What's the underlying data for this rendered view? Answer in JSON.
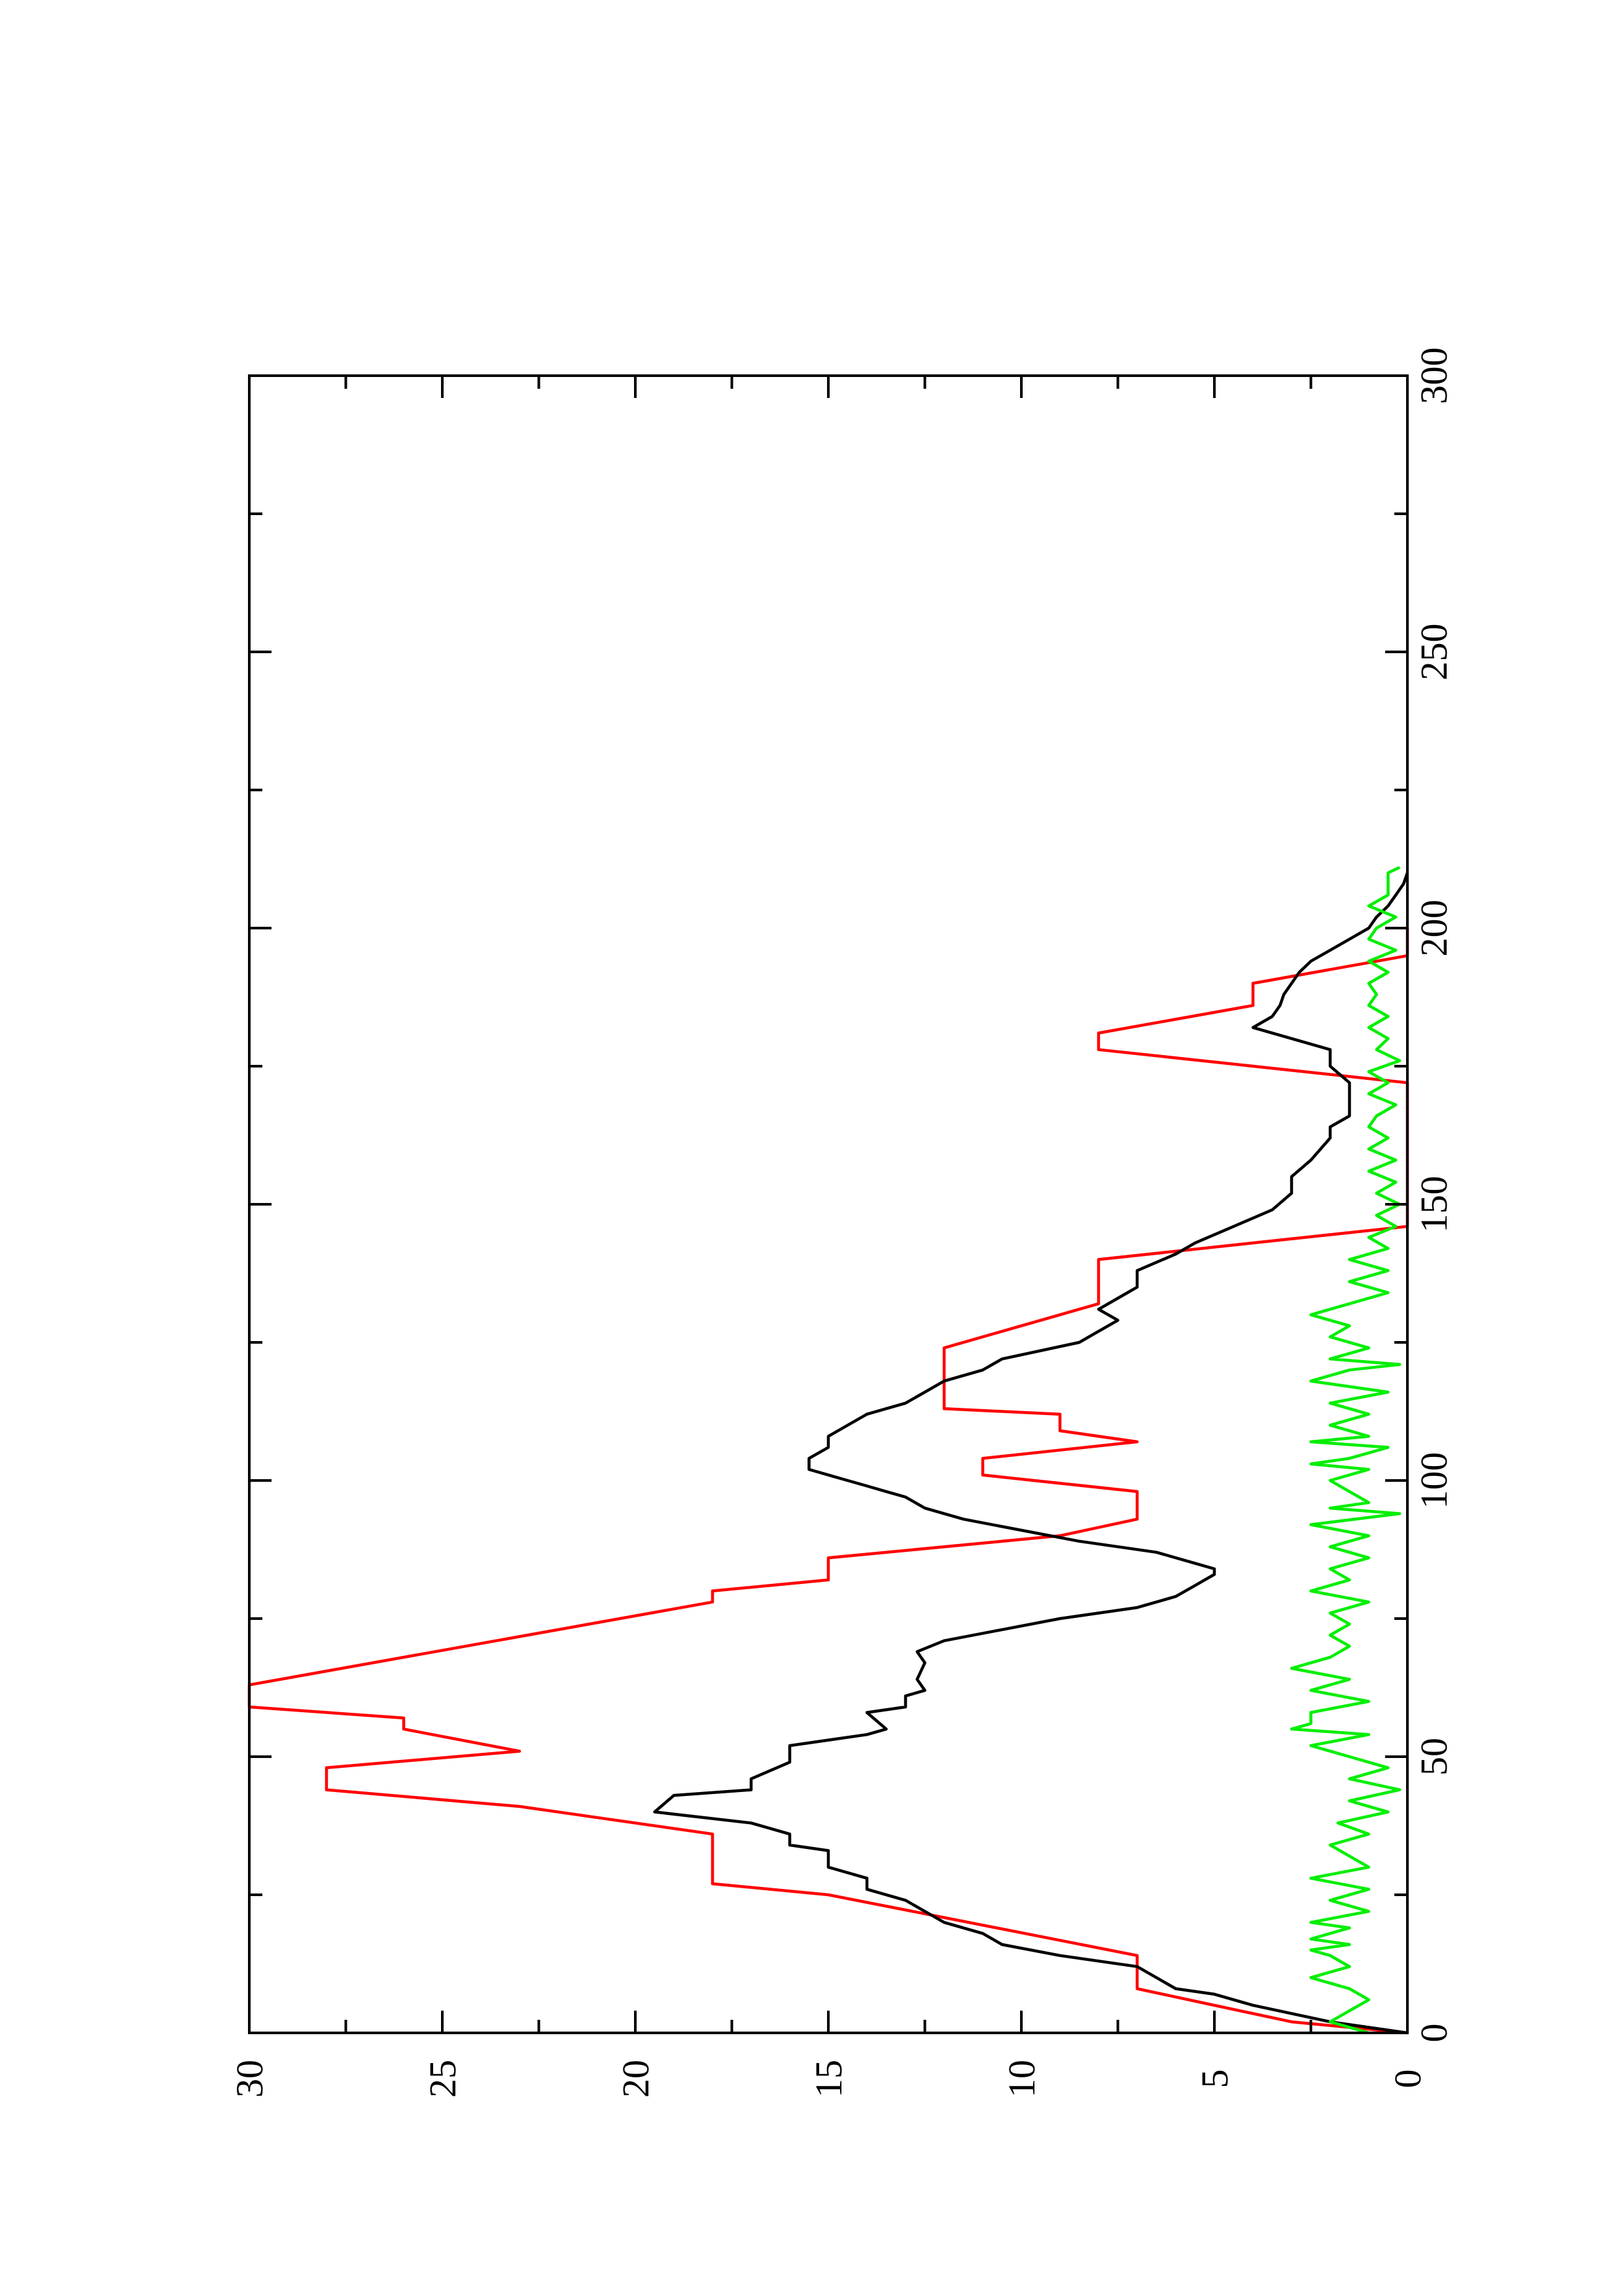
{
  "chart_data": {
    "type": "line",
    "title": "",
    "xlabel": "",
    "ylabel": "",
    "orientation": "rotated-90-ccw",
    "xlim": [
      0,
      300
    ],
    "ylim": [
      0,
      30
    ],
    "x_ticks": [
      0,
      50,
      100,
      150,
      200,
      250,
      300
    ],
    "x_tick_labels": [
      "0",
      "50",
      "100",
      "150",
      "200",
      "250",
      "300"
    ],
    "y_ticks": [
      0,
      5,
      10,
      15,
      20,
      25,
      30
    ],
    "y_tick_labels": [
      "0",
      "5",
      "10",
      "15",
      "20",
      "25",
      "30"
    ],
    "grid": false,
    "legend": "none",
    "series": [
      {
        "color": "#ff0000",
        "points": [
          [
            0,
            0
          ],
          [
            2,
            3
          ],
          [
            8,
            7
          ],
          [
            14,
            7
          ],
          [
            25,
            15
          ],
          [
            27,
            18
          ],
          [
            36,
            18
          ],
          [
            41,
            23
          ],
          [
            44,
            28
          ],
          [
            48,
            28
          ],
          [
            51,
            23
          ],
          [
            55,
            26
          ],
          [
            57,
            26
          ],
          [
            59,
            30
          ],
          [
            63,
            30
          ],
          [
            78,
            18
          ],
          [
            80,
            18
          ],
          [
            82,
            15
          ],
          [
            86,
            15
          ],
          [
            90,
            9
          ],
          [
            93,
            7
          ],
          [
            98,
            7
          ],
          [
            101,
            11
          ],
          [
            104,
            11
          ],
          [
            107,
            7
          ],
          [
            109,
            9
          ],
          [
            112,
            9
          ],
          [
            113,
            12
          ],
          [
            119,
            12
          ],
          [
            124,
            12
          ],
          [
            130,
            9
          ],
          [
            132,
            8
          ],
          [
            140,
            8
          ],
          [
            146,
            0
          ],
          [
            154,
            0
          ],
          [
            172,
            0
          ],
          [
            178,
            8
          ],
          [
            181,
            8
          ],
          [
            186,
            4
          ],
          [
            190,
            4
          ],
          [
            195,
            0
          ],
          [
            200,
            0
          ]
        ]
      },
      {
        "color": "#000000",
        "points": [
          [
            0,
            0
          ],
          [
            2,
            2
          ],
          [
            5,
            4
          ],
          [
            7,
            5
          ],
          [
            8,
            6
          ],
          [
            10,
            6.5
          ],
          [
            12,
            7
          ],
          [
            14,
            9
          ],
          [
            16,
            10.5
          ],
          [
            18,
            11
          ],
          [
            20,
            12
          ],
          [
            22,
            12.5
          ],
          [
            24,
            13
          ],
          [
            26,
            14
          ],
          [
            28,
            14
          ],
          [
            30,
            15
          ],
          [
            33,
            15
          ],
          [
            34,
            16
          ],
          [
            36,
            16
          ],
          [
            38,
            17
          ],
          [
            40,
            19.5
          ],
          [
            43,
            19
          ],
          [
            44,
            17
          ],
          [
            46,
            17
          ],
          [
            49,
            16
          ],
          [
            52,
            16
          ],
          [
            54,
            14
          ],
          [
            55,
            13.5
          ],
          [
            58,
            14
          ],
          [
            59,
            13
          ],
          [
            61,
            13
          ],
          [
            62,
            12.5
          ],
          [
            64,
            12.7
          ],
          [
            67,
            12.5
          ],
          [
            69,
            12.7
          ],
          [
            71,
            12
          ],
          [
            73,
            10.5
          ],
          [
            75,
            9
          ],
          [
            77,
            7
          ],
          [
            79,
            6
          ],
          [
            81,
            5.5
          ],
          [
            83,
            5
          ],
          [
            84,
            5
          ],
          [
            85,
            5.5
          ],
          [
            87,
            6.5
          ],
          [
            89,
            8.5
          ],
          [
            91,
            10
          ],
          [
            93,
            11.5
          ],
          [
            95,
            12.5
          ],
          [
            97,
            13
          ],
          [
            98,
            13.5
          ],
          [
            99,
            14
          ],
          [
            100,
            14.5
          ],
          [
            101,
            15
          ],
          [
            102,
            15.5
          ],
          [
            104,
            15.5
          ],
          [
            106,
            15
          ],
          [
            108,
            15
          ],
          [
            110,
            14.5
          ],
          [
            112,
            14
          ],
          [
            114,
            13
          ],
          [
            116,
            12.5
          ],
          [
            118,
            12
          ],
          [
            120,
            11
          ],
          [
            122,
            10.5
          ],
          [
            125,
            8.5
          ],
          [
            127,
            8
          ],
          [
            129,
            7.5
          ],
          [
            131,
            8
          ],
          [
            133,
            7.5
          ],
          [
            135,
            7
          ],
          [
            138,
            7
          ],
          [
            141,
            6
          ],
          [
            143,
            5.5
          ],
          [
            146,
            4.5
          ],
          [
            149,
            3.5
          ],
          [
            152,
            3
          ],
          [
            155,
            3
          ],
          [
            158,
            2.5
          ],
          [
            162,
            2
          ],
          [
            164,
            2
          ],
          [
            166,
            1.5
          ],
          [
            168,
            1.5
          ],
          [
            170,
            1.5
          ],
          [
            172,
            1.5
          ],
          [
            175,
            2
          ],
          [
            178,
            2
          ],
          [
            180,
            3
          ],
          [
            182,
            4
          ],
          [
            184,
            3.5
          ],
          [
            186,
            3.3
          ],
          [
            188,
            3.2
          ],
          [
            190,
            3
          ],
          [
            192,
            2.8
          ],
          [
            194,
            2.5
          ],
          [
            196,
            2
          ],
          [
            198,
            1.5
          ],
          [
            200,
            1
          ],
          [
            202,
            0.8
          ],
          [
            204,
            0.5
          ],
          [
            206,
            0.3
          ],
          [
            208,
            0.1
          ],
          [
            210,
            0
          ]
        ]
      },
      {
        "color": "#00ee00",
        "points": [
          [
            0,
            1
          ],
          [
            2,
            2
          ],
          [
            4,
            1.5
          ],
          [
            6,
            1
          ],
          [
            8,
            1.5
          ],
          [
            10,
            2.5
          ],
          [
            12,
            1.5
          ],
          [
            14,
            2
          ],
          [
            15,
            2.5
          ],
          [
            16,
            1.5
          ],
          [
            17,
            2.5
          ],
          [
            19,
            1.5
          ],
          [
            20,
            2.5
          ],
          [
            22,
            1
          ],
          [
            24,
            2
          ],
          [
            26,
            1
          ],
          [
            28,
            2.5
          ],
          [
            30,
            1
          ],
          [
            32,
            1.5
          ],
          [
            34,
            2
          ],
          [
            36,
            1
          ],
          [
            38,
            1.8
          ],
          [
            40,
            0.5
          ],
          [
            42,
            1.5
          ],
          [
            44,
            0.2
          ],
          [
            46,
            1.5
          ],
          [
            48,
            0.5
          ],
          [
            50,
            1.5
          ],
          [
            52,
            2.5
          ],
          [
            54,
            1
          ],
          [
            55,
            3
          ],
          [
            56,
            2.5
          ],
          [
            58,
            2.5
          ],
          [
            60,
            1
          ],
          [
            62,
            2.5
          ],
          [
            64,
            1.5
          ],
          [
            66,
            3
          ],
          [
            68,
            2
          ],
          [
            70,
            1.5
          ],
          [
            72,
            2
          ],
          [
            74,
            1.5
          ],
          [
            76,
            2
          ],
          [
            78,
            1
          ],
          [
            80,
            2.5
          ],
          [
            82,
            1.5
          ],
          [
            84,
            2
          ],
          [
            86,
            1
          ],
          [
            88,
            2
          ],
          [
            90,
            1
          ],
          [
            92,
            2.5
          ],
          [
            94,
            0.2
          ],
          [
            95,
            2
          ],
          [
            96,
            1
          ],
          [
            98,
            1.5
          ],
          [
            100,
            2
          ],
          [
            102,
            1
          ],
          [
            103,
            2.5
          ],
          [
            104,
            1.5
          ],
          [
            106,
            0.5
          ],
          [
            107,
            2.5
          ],
          [
            108,
            1
          ],
          [
            110,
            2
          ],
          [
            112,
            1
          ],
          [
            114,
            2
          ],
          [
            116,
            0.5
          ],
          [
            118,
            2.5
          ],
          [
            120,
            1.5
          ],
          [
            121,
            0.2
          ],
          [
            122,
            2
          ],
          [
            124,
            1
          ],
          [
            126,
            2
          ],
          [
            128,
            1.5
          ],
          [
            130,
            2.5
          ],
          [
            132,
            1.5
          ],
          [
            134,
            0.5
          ],
          [
            136,
            1.5
          ],
          [
            138,
            0.5
          ],
          [
            140,
            1.5
          ],
          [
            142,
            0.5
          ],
          [
            144,
            1
          ],
          [
            146,
            0.3
          ],
          [
            148,
            0.8
          ],
          [
            150,
            0.2
          ],
          [
            152,
            0.8
          ],
          [
            154,
            0.3
          ],
          [
            156,
            1
          ],
          [
            158,
            0.3
          ],
          [
            160,
            1
          ],
          [
            162,
            0.5
          ],
          [
            164,
            1
          ],
          [
            166,
            0.8
          ],
          [
            168,
            0.3
          ],
          [
            170,
            1
          ],
          [
            172,
            0.5
          ],
          [
            174,
            1
          ],
          [
            176,
            0.2
          ],
          [
            178,
            0.8
          ],
          [
            180,
            0.5
          ],
          [
            182,
            1
          ],
          [
            184,
            0.5
          ],
          [
            186,
            1
          ],
          [
            188,
            0.8
          ],
          [
            190,
            1
          ],
          [
            192,
            0.5
          ],
          [
            194,
            1
          ],
          [
            196,
            0.3
          ],
          [
            198,
            1
          ],
          [
            200,
            0.8
          ],
          [
            202,
            0.3
          ],
          [
            204,
            1
          ],
          [
            206,
            0.5
          ],
          [
            208,
            0.5
          ],
          [
            210,
            0.5
          ],
          [
            211,
            0.2
          ]
        ]
      }
    ]
  }
}
